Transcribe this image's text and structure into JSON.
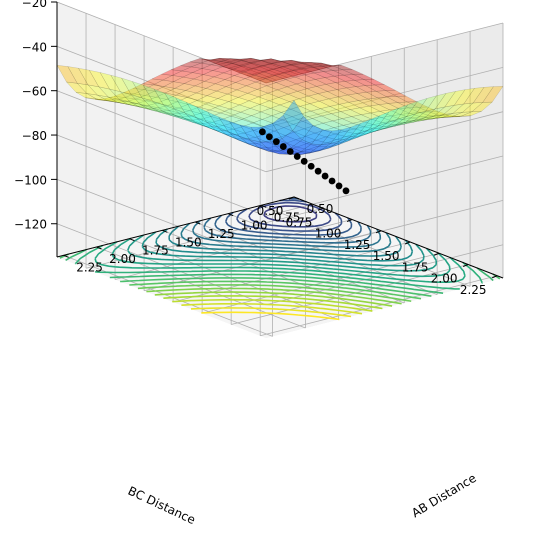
{
  "chart_data": {
    "type": "surface3d",
    "title": "",
    "xlabel": "AB Distance",
    "ylabel": "BC Distance",
    "zlabel": "",
    "xlim": [
      0.5,
      2.3
    ],
    "ylim": [
      0.5,
      2.3
    ],
    "zlim": [
      -135,
      -20
    ],
    "x_ticks": [
      "0.50",
      "0.75",
      "1.00",
      "1.25",
      "1.50",
      "1.75",
      "2.00",
      "2.25"
    ],
    "y_ticks": [
      "0.50",
      "0.75",
      "1.00",
      "1.25",
      "1.50",
      "1.75",
      "2.00",
      "2.25"
    ],
    "z_ticks": [
      "−20",
      "−40",
      "−60",
      "−80",
      "−100",
      "−120"
    ],
    "z_tick_values": [
      -20,
      -40,
      -60,
      -80,
      -100,
      -120
    ],
    "colormap_surface": "jet",
    "colormap_contour": "viridis",
    "surface_clip_max": -20,
    "contour_levels": 32,
    "trajectory_points": [
      [
        0.74,
        0.5,
        -102
      ],
      [
        0.74,
        0.56,
        -103
      ],
      [
        0.74,
        0.62,
        -104
      ],
      [
        0.74,
        0.68,
        -105
      ],
      [
        0.74,
        0.74,
        -106
      ],
      [
        0.74,
        0.8,
        -107
      ],
      [
        0.74,
        0.86,
        -108
      ],
      [
        0.74,
        0.92,
        -109
      ],
      [
        0.74,
        0.98,
        -110
      ],
      [
        0.74,
        1.04,
        -111
      ],
      [
        0.74,
        1.1,
        -112
      ],
      [
        0.74,
        1.16,
        -113
      ],
      [
        0.74,
        1.22,
        -114
      ]
    ],
    "grid": true
  }
}
